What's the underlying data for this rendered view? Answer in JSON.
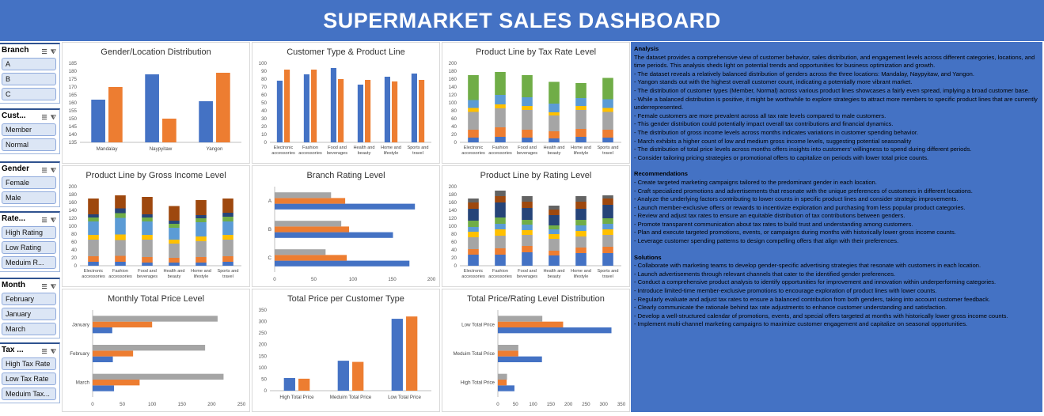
{
  "header": {
    "title": "SUPERMARKET SALES DASHBOARD"
  },
  "colors": {
    "header_bg": "#4472c4",
    "series_blue": "#4472c4",
    "series_orange": "#ed7d31",
    "series_gray": "#a5a5a5",
    "series_yellow": "#ffc000",
    "series_lightblue": "#5b9bd5",
    "series_green": "#70ad47",
    "series_navy": "#264478",
    "series_brown": "#9e480e",
    "series_darkgray": "#636363"
  },
  "slicers": [
    {
      "title": "Branch",
      "items": [
        "A",
        "B",
        "C"
      ]
    },
    {
      "title": "Cust...",
      "items": [
        "Member",
        "Normal"
      ]
    },
    {
      "title": "Gender",
      "items": [
        "Female",
        "Male"
      ]
    },
    {
      "title": "Rate...",
      "items": [
        "High Rating",
        "Low Rating",
        "Meduim R..."
      ]
    },
    {
      "title": "Month",
      "items": [
        "February",
        "January",
        "March"
      ]
    },
    {
      "title": "Tax ...",
      "items": [
        "High Tax Rate",
        "Low Tax Rate",
        "Meduim Tax..."
      ]
    }
  ],
  "product_lines": [
    "Electronic accessories",
    "Fashion accessories",
    "Food and beverages",
    "Health and beauty",
    "Home and lifestyle",
    "Sports and travel"
  ],
  "chart_data": [
    {
      "id": "gender_location",
      "type": "bar",
      "title": "Gender/Location Distribution",
      "categories": [
        "Mandalay",
        "Naypyitaw",
        "Yangon"
      ],
      "series": [
        {
          "values": [
            162,
            178,
            161
          ]
        },
        {
          "values": [
            170,
            150,
            179
          ]
        }
      ],
      "ylim": [
        135,
        185
      ],
      "yticks": [
        135,
        140,
        145,
        150,
        155,
        160,
        165,
        170,
        175,
        180,
        185
      ]
    },
    {
      "id": "customer_product",
      "type": "bar",
      "title": "Customer Type & Product Line",
      "categories": [
        "Electronic accessories",
        "Fashion accessories",
        "Food and beverages",
        "Health and beauty",
        "Home and lifestyle",
        "Sports and travel"
      ],
      "series": [
        {
          "values": [
            78,
            86,
            94,
            73,
            83,
            87
          ]
        },
        {
          "values": [
            92,
            92,
            80,
            79,
            77,
            79
          ]
        }
      ],
      "ylim": [
        0,
        100
      ],
      "yticks": [
        0,
        10,
        20,
        30,
        40,
        50,
        60,
        70,
        80,
        90,
        100
      ]
    },
    {
      "id": "tax_rate",
      "type": "bar",
      "stacked": true,
      "title": "Product Line by Tax Rate Level",
      "categories": [
        "Electronic accessories",
        "Fashion accessories",
        "Food and beverages",
        "Health and beauty",
        "Home and lifestyle",
        "Sports and travel"
      ],
      "series": [
        {
          "values": [
            12,
            14,
            12,
            10,
            14,
            12
          ]
        },
        {
          "values": [
            20,
            24,
            20,
            18,
            20,
            20
          ]
        },
        {
          "values": [
            45,
            48,
            50,
            40,
            48,
            45
          ]
        },
        {
          "values": [
            10,
            10,
            10,
            8,
            10,
            10
          ]
        },
        {
          "values": [
            20,
            24,
            22,
            22,
            20,
            22
          ]
        },
        {
          "values": [
            63,
            58,
            56,
            55,
            38,
            54
          ]
        }
      ],
      "ylim": [
        0,
        200
      ],
      "yticks": [
        0,
        20,
        40,
        60,
        80,
        100,
        120,
        140,
        160,
        180,
        200
      ]
    },
    {
      "id": "gross_income",
      "type": "bar",
      "stacked": true,
      "title": "Product Line by Gross Income Level",
      "categories": [
        "Electronic accessories",
        "Fashion accessories",
        "Food and beverages",
        "Health and beauty",
        "Home and lifestyle",
        "Sports and travel"
      ],
      "series": [
        {
          "values": [
            10,
            10,
            8,
            8,
            8,
            10
          ]
        },
        {
          "values": [
            14,
            15,
            14,
            12,
            14,
            14
          ]
        },
        {
          "values": [
            42,
            40,
            44,
            36,
            40,
            42
          ]
        },
        {
          "values": [
            12,
            14,
            12,
            10,
            12,
            12
          ]
        },
        {
          "values": [
            34,
            42,
            34,
            30,
            36,
            34
          ]
        },
        {
          "values": [
            10,
            12,
            10,
            10,
            10,
            12
          ]
        },
        {
          "values": [
            8,
            12,
            8,
            8,
            8,
            10
          ]
        },
        {
          "values": [
            40,
            33,
            44,
            37,
            38,
            36
          ]
        }
      ],
      "ylim": [
        0,
        200
      ],
      "yticks": [
        0,
        20,
        40,
        60,
        80,
        100,
        120,
        140,
        160,
        180,
        200
      ]
    },
    {
      "id": "branch_rating",
      "type": "bar",
      "orientation": "horizontal",
      "title": "Branch Rating Level",
      "categories": [
        "A",
        "B",
        "C"
      ],
      "series": [
        {
          "values": [
            179,
            151,
            172
          ]
        },
        {
          "values": [
            90,
            95,
            92
          ]
        },
        {
          "values": [
            72,
            85,
            65
          ]
        }
      ],
      "xlim": [
        0,
        200
      ],
      "xticks": [
        0,
        50,
        100,
        150,
        200
      ]
    },
    {
      "id": "rating_level",
      "type": "bar",
      "stacked": true,
      "title": "Product Line by Rating Level",
      "categories": [
        "Electronic accessories",
        "Fashion accessories",
        "Food and beverages",
        "Health and beauty",
        "Home and lifestyle",
        "Sports and travel"
      ],
      "series": [
        {
          "values": [
            28,
            28,
            34,
            26,
            32,
            32
          ]
        },
        {
          "values": [
            14,
            16,
            16,
            12,
            14,
            16
          ]
        },
        {
          "values": [
            30,
            32,
            28,
            30,
            28,
            30
          ]
        },
        {
          "values": [
            14,
            16,
            12,
            12,
            14,
            14
          ]
        },
        {
          "values": [
            12,
            14,
            14,
            12,
            14,
            14
          ]
        },
        {
          "values": [
            16,
            16,
            12,
            10,
            14,
            14
          ]
        },
        {
          "values": [
            30,
            38,
            30,
            26,
            28,
            34
          ]
        },
        {
          "values": [
            16,
            16,
            16,
            14,
            18,
            16
          ]
        },
        {
          "values": [
            10,
            14,
            14,
            10,
            14,
            8
          ]
        }
      ],
      "ylim": [
        0,
        200
      ],
      "yticks": [
        0,
        20,
        40,
        60,
        80,
        100,
        120,
        140,
        160,
        180,
        200
      ]
    },
    {
      "id": "monthly_price",
      "type": "bar",
      "orientation": "horizontal",
      "title": "Monthly Total Price Level",
      "categories": [
        "January",
        "February",
        "March"
      ],
      "series": [
        {
          "values": [
            33,
            34,
            36
          ]
        },
        {
          "values": [
            100,
            68,
            79
          ]
        },
        {
          "values": [
            210,
            189,
            220
          ]
        }
      ],
      "xlim": [
        0,
        250
      ],
      "xticks": [
        0,
        50,
        100,
        150,
        200,
        250
      ]
    },
    {
      "id": "price_customer",
      "type": "bar",
      "title": "Total Price per Customer Type",
      "categories": [
        "High Total Price",
        "Meduim Total Price",
        "Low Total Price"
      ],
      "series": [
        {
          "values": [
            55,
            130,
            312
          ]
        },
        {
          "values": [
            52,
            125,
            322
          ]
        }
      ],
      "ylim": [
        0,
        350
      ],
      "yticks": [
        0,
        50,
        100,
        150,
        200,
        250,
        300,
        350
      ]
    },
    {
      "id": "price_rating",
      "type": "bar",
      "orientation": "horizontal",
      "title": "Total Price/Rating Level Distribution",
      "categories": [
        "Low Total Price",
        "Meduim Total Price",
        "High Total Price"
      ],
      "series": [
        {
          "values": [
            322,
            125,
            47
          ]
        },
        {
          "values": [
            185,
            58,
            25
          ]
        },
        {
          "values": [
            126,
            58,
            26
          ]
        }
      ],
      "xlim": [
        0,
        350
      ],
      "xticks": [
        0,
        50,
        100,
        150,
        200,
        250,
        300,
        350
      ]
    }
  ],
  "analysis": {
    "heading": "Analysis",
    "lines": [
      "The dataset provides a comprehensive view of customer behavior, sales distribution, and engagement levels across different categories, locations, and time periods. This analysis sheds light on potential trends and opportunities for business optimization and growth.",
      "- The dataset reveals a relatively balanced distribution of genders across the three locations: Mandalay, Naypyitaw, and Yangon.",
      "- Yangon stands out with the highest overall customer count, indicating a potentially more vibrant market.",
      "- The distribution of customer types (Member, Normal) across various product lines showcases a fairly even spread, implying a broad customer base.",
      "- While a balanced distribution is positive, it might be worthwhile to explore strategies to attract more members to specific product lines that are currently underrepresented.",
      "- Female customers are more prevalent across all tax rate levels compared to male customers.",
      "- This gender distribution could potentially impact overall tax contributions and financial dynamics.",
      "- The distribution of gross income levels across months indicates variations in customer spending behavior.",
      "- March exhibits a higher count of low and medium gross income levels, suggesting potential seasonality",
      "- The distribution of total price levels across months offers insights into customers' willingness to spend during different periods.",
      "- Consider tailoring pricing strategies or promotional offers to capitalize on periods with lower total price counts."
    ]
  },
  "recommendations": {
    "heading": "Recommendations",
    "lines": [
      "- Create targeted marketing campaigns tailored to the predominant gender in each location.",
      "- Craft specialized promotions and advertisements that resonate with the unique preferences of customers in different locations.",
      "- Analyze the underlying factors contributing to lower counts in specific product lines and consider strategic improvements.",
      "- Launch member-exclusive offers or rewards to incentivize exploration and purchasing from less popular product categories.",
      "- Review and adjust tax rates to ensure an equitable distribution of tax contributions between genders.",
      "- Promote transparent communication about tax rates to build trust and understanding among customers.",
      "- Plan and execute targeted promotions, events, or campaigns during months with historically lower gross income counts.",
      "- Leverage customer spending patterns to design compelling offers that align with their preferences."
    ]
  },
  "solutions": {
    "heading": "Solutions",
    "lines": [
      "- Collaborate with marketing teams to develop gender-specific advertising strategies that resonate with customers in each location.",
      "- Launch advertisements through relevant channels that cater to the identified gender preferences.",
      "- Conduct a comprehensive product analysis to identify opportunities for improvement and innovation within underperforming categories.",
      "- Introduce limited-time member-exclusive promotions to encourage exploration of product lines with lower counts.",
      "- Regularly evaluate and adjust tax rates to ensure a balanced contribution from both genders, taking into account customer feedback.",
      "- Clearly communicate the rationale behind tax rate adjustments to enhance customer understanding and satisfaction.",
      "- Develop a well-structured calendar of promotions, events, and special offers targeted at months with historically lower gross income counts.",
      "- Implement multi-channel marketing campaigns to maximize customer engagement and capitalize on seasonal opportunities."
    ]
  }
}
